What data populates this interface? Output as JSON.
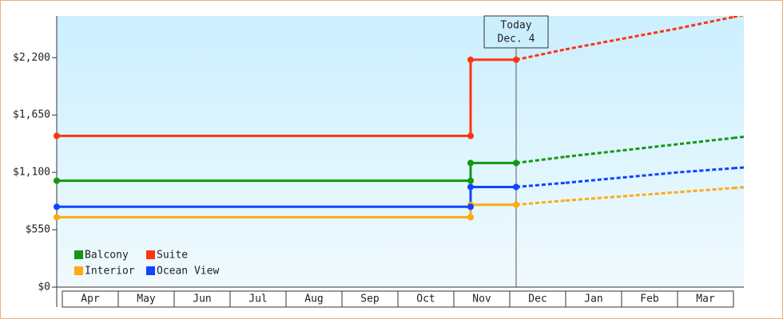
{
  "chart_data": {
    "type": "step-forecast",
    "categories": [
      "Apr",
      "May",
      "Jun",
      "Jul",
      "Aug",
      "Sep",
      "Oct",
      "Nov",
      "Dec",
      "Jan",
      "Feb",
      "Mar"
    ],
    "today": [
      "Today",
      "Dec. 4"
    ],
    "ylim": [
      0,
      2600
    ],
    "yticks": [
      {
        "value": 0,
        "label": "$0"
      },
      {
        "value": 550,
        "label": "$550"
      },
      {
        "value": 1100,
        "label": "$1,100"
      },
      {
        "value": 1650,
        "label": "$1,650"
      },
      {
        "value": 2200,
        "label": "$2,200"
      }
    ],
    "series": [
      {
        "name": "Balcony",
        "color": "#119911",
        "values": [
          1020,
          1020,
          1020,
          1020,
          1020,
          1020,
          1020,
          1190,
          null,
          null,
          null,
          null
        ],
        "forecast": [
          null,
          null,
          null,
          null,
          null,
          null,
          null,
          null,
          1250,
          1310,
          1370,
          1430
        ]
      },
      {
        "name": "Suite",
        "color": "#ff3311",
        "values": [
          1450,
          1450,
          1450,
          1450,
          1450,
          1450,
          1450,
          2180,
          null,
          null,
          null,
          null
        ],
        "forecast": [
          null,
          null,
          null,
          null,
          null,
          null,
          null,
          null,
          2280,
          2380,
          2480,
          2590
        ]
      },
      {
        "name": "Interior",
        "color": "#ffaa11",
        "values": [
          670,
          670,
          670,
          670,
          670,
          670,
          670,
          790,
          null,
          null,
          null,
          null
        ],
        "forecast": [
          null,
          null,
          null,
          null,
          null,
          null,
          null,
          null,
          830,
          870,
          910,
          950
        ]
      },
      {
        "name": "Ocean View",
        "color": "#1144ff",
        "values": [
          770,
          770,
          770,
          770,
          770,
          770,
          770,
          960,
          null,
          null,
          null,
          null
        ],
        "forecast": [
          null,
          null,
          null,
          null,
          null,
          null,
          null,
          null,
          1000,
          1050,
          1100,
          1140
        ]
      }
    ]
  }
}
